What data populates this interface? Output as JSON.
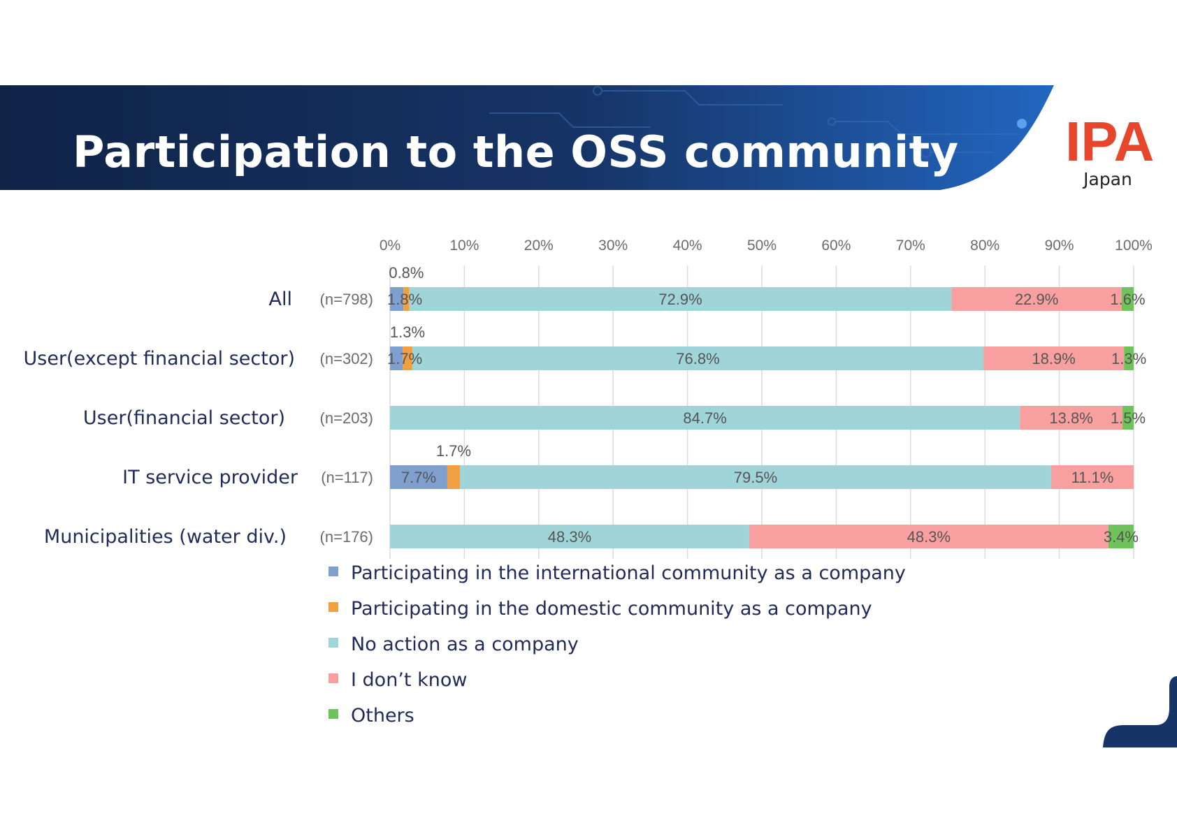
{
  "slide": {
    "title": "Participation to the OSS community",
    "logo_text": "IPA",
    "logo_subtext": "Japan",
    "colors": {
      "banner": "#163466",
      "banner_accent": "#1f5eb3",
      "logo": "#e8462b"
    }
  },
  "chart_data": {
    "type": "bar",
    "orientation": "horizontal",
    "stacked": true,
    "categories": [
      "All",
      "User(except financial sector)",
      "User(financial sector)",
      "IT service provider",
      "Municipalities (water div.)"
    ],
    "sample_sizes": [
      "(n=798)",
      "(n=302)",
      "(n=203)",
      "(n=117)",
      "(n=176)"
    ],
    "series": [
      {
        "name": "Participating in the international community as a company",
        "color": "#7f9fcf",
        "values": [
          1.8,
          1.7,
          0,
          7.7,
          0
        ],
        "labels": [
          "1.8%",
          "1.7%",
          "",
          "7.7%",
          ""
        ]
      },
      {
        "name": "Participating in the domestic community as a company",
        "color": "#f0a040",
        "values": [
          0.8,
          1.3,
          0,
          1.7,
          0
        ],
        "labels": [
          "0.8%",
          "1.3%",
          "",
          "1.7%",
          ""
        ]
      },
      {
        "name": "No action as a company",
        "color": "#9fd4d8",
        "values": [
          72.9,
          76.8,
          84.7,
          79.5,
          48.3
        ],
        "labels": [
          "72.9%",
          "76.8%",
          "84.7%",
          "79.5%",
          "48.3%"
        ]
      },
      {
        "name": "I don’t know",
        "color": "#f8a0a0",
        "values": [
          22.9,
          18.9,
          13.8,
          11.1,
          48.3
        ],
        "labels": [
          "22.9%",
          "18.9%",
          "13.8%",
          "11.1%",
          "48.3%"
        ]
      },
      {
        "name": "Others",
        "color": "#6ec35a",
        "values": [
          1.6,
          1.3,
          1.5,
          0,
          3.4
        ],
        "labels": [
          "1.6%",
          "1.3%",
          "1.5%",
          "",
          "3.4%"
        ]
      }
    ],
    "x_ticks": [
      "0%",
      "10%",
      "20%",
      "30%",
      "40%",
      "50%",
      "60%",
      "70%",
      "80%",
      "90%",
      "100%"
    ],
    "xlim": [
      0,
      100
    ],
    "grid": true,
    "legend_position": "bottom"
  }
}
